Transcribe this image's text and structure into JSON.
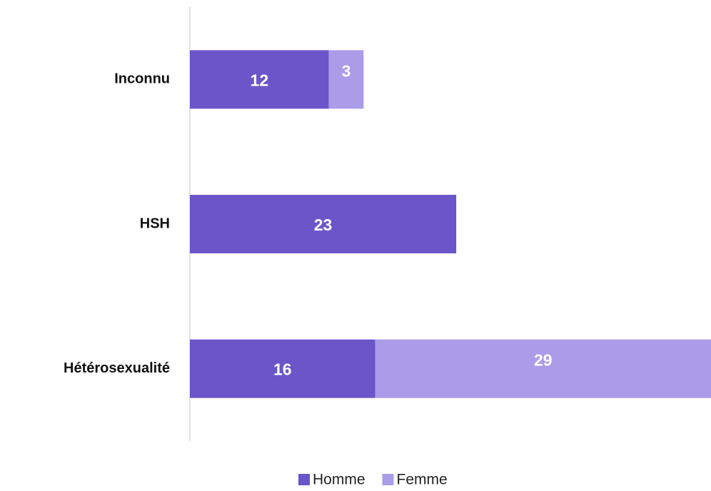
{
  "chart_data": {
    "type": "stacked-barh",
    "categories": [
      "Inconnu",
      "HSH",
      "Hétérosexualité"
    ],
    "series": [
      {
        "name": "Homme",
        "color": "#6a56c9",
        "values": [
          12,
          23,
          16
        ]
      },
      {
        "name": "Femme",
        "color": "#aa9ce8",
        "values": [
          3,
          null,
          29
        ]
      }
    ],
    "xlim": [
      0,
      45
    ],
    "legend": "bottom"
  }
}
